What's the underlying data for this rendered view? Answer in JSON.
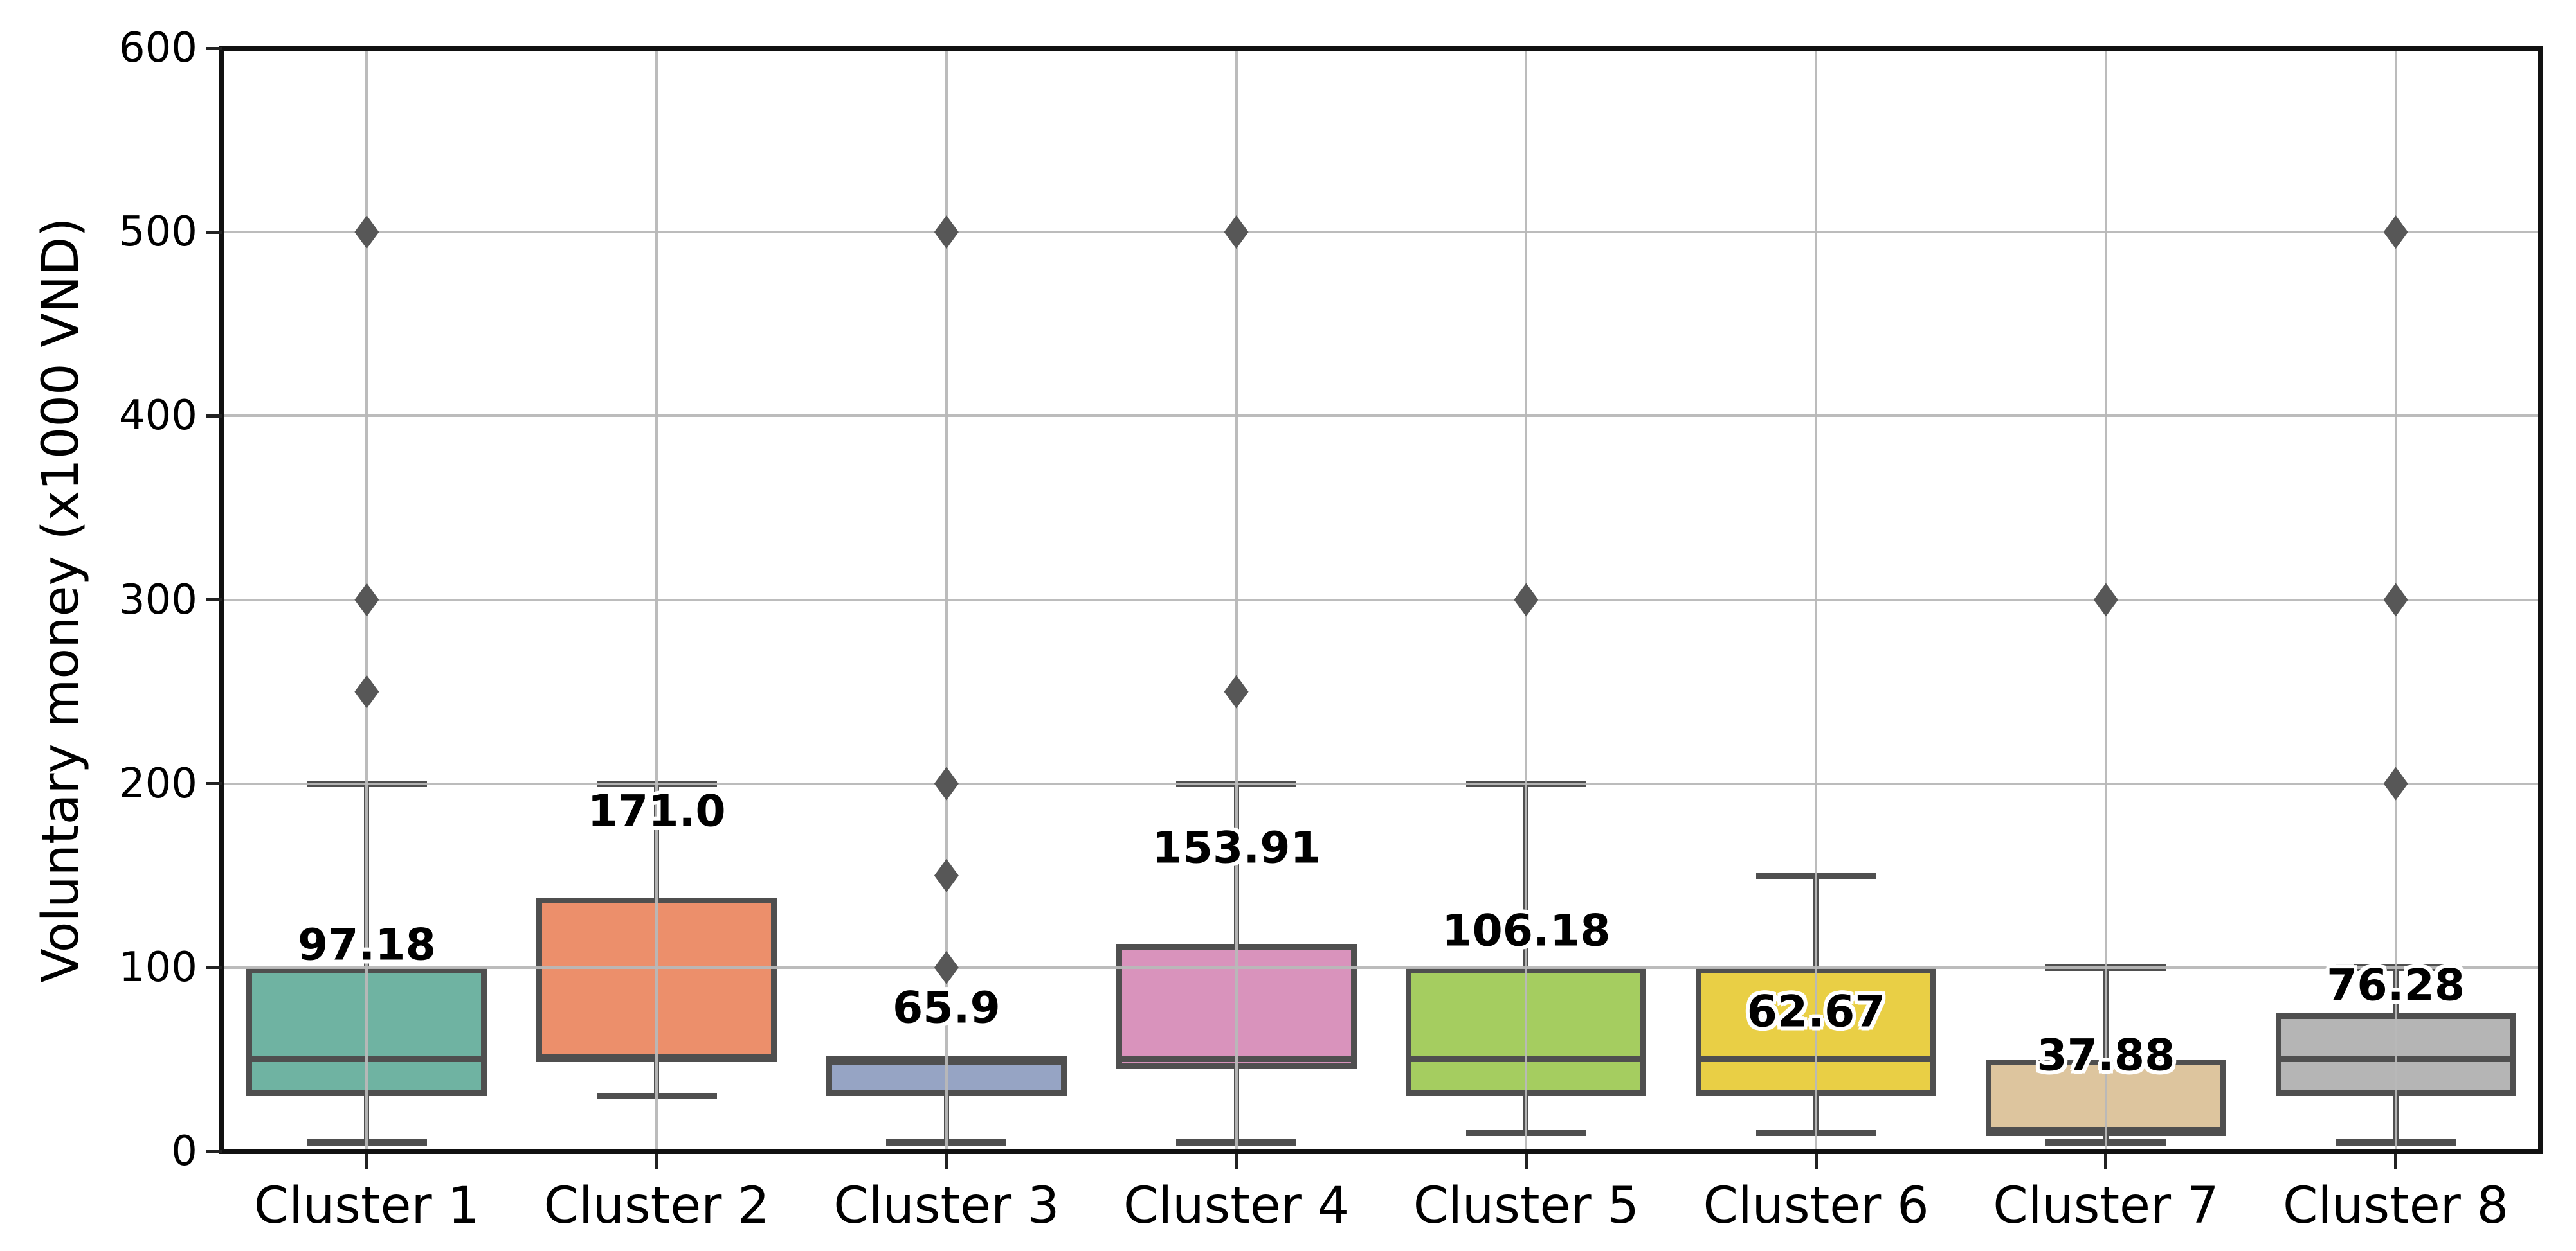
{
  "chart_data": {
    "type": "boxplot",
    "title": "",
    "xlabel": "",
    "ylabel": "Voluntary money (x1000 VND)",
    "ylim": [
      0,
      600
    ],
    "yticks": [
      0,
      100,
      200,
      300,
      400,
      500,
      600
    ],
    "grid": true,
    "legend": "none",
    "colors": {
      "box_edge": "#4f4f4f",
      "whisker": "#4f4f4f",
      "median": "#4f4f4f",
      "outlier_marker": "#575757",
      "gridline": "#b8b8b8",
      "spine": "#111111",
      "background": "#ffffff",
      "mean_label_text": "#000000"
    },
    "outlier_marker_shape": "thin-diamond",
    "clusters": [
      {
        "label": "Cluster 1",
        "mean_label": "97.18",
        "box_color": "#6fb3a2",
        "whisker_low": 5,
        "q1": 30,
        "median": 50,
        "q3": 100,
        "whisker_high": 200,
        "outliers": [
          250,
          300,
          500
        ],
        "mean_label_y": 112
      },
      {
        "label": "Cluster 2",
        "mean_label": "171.0",
        "box_color": "#ec8f6b",
        "whisker_low": 30,
        "q1": 50,
        "median": 50,
        "q3": 138,
        "whisker_high": 200,
        "outliers": [],
        "mean_label_y": 185
      },
      {
        "label": "Cluster 3",
        "mean_label": "65.9",
        "box_color": "#96a4c4",
        "whisker_low": 5,
        "q1": 30,
        "median": 50,
        "q3": 50,
        "whisker_high": 50,
        "outliers": [
          100,
          150,
          200,
          500
        ],
        "mean_label_y": 78
      },
      {
        "label": "Cluster 4",
        "mean_label": "153.91",
        "box_color": "#d993bc",
        "whisker_low": 5,
        "q1": 45,
        "median": 50,
        "q3": 113,
        "whisker_high": 200,
        "outliers": [
          250,
          500
        ],
        "mean_label_y": 165
      },
      {
        "label": "Cluster 5",
        "mean_label": "106.18",
        "box_color": "#a5cd60",
        "whisker_low": 10,
        "q1": 30,
        "median": 50,
        "q3": 100,
        "whisker_high": 200,
        "outliers": [
          300
        ],
        "mean_label_y": 120
      },
      {
        "label": "Cluster 6",
        "mean_label": "62.67",
        "box_color": "#e9cf45",
        "whisker_low": 10,
        "q1": 30,
        "median": 50,
        "q3": 100,
        "whisker_high": 150,
        "outliers": [],
        "mean_label_y": 76
      },
      {
        "label": "Cluster 7",
        "mean_label": "37.88",
        "box_color": "#ddc59e",
        "whisker_low": 5,
        "q1": 10,
        "median": 10,
        "q3": 50,
        "whisker_high": 100,
        "outliers": [
          300
        ],
        "mean_label_y": 52
      },
      {
        "label": "Cluster 8",
        "mean_label": "76.28",
        "box_color": "#b5b5b5",
        "whisker_low": 5,
        "q1": 30,
        "median": 50,
        "q3": 75,
        "whisker_high": 100,
        "outliers": [
          200,
          300,
          500
        ],
        "mean_label_y": 90
      }
    ]
  }
}
